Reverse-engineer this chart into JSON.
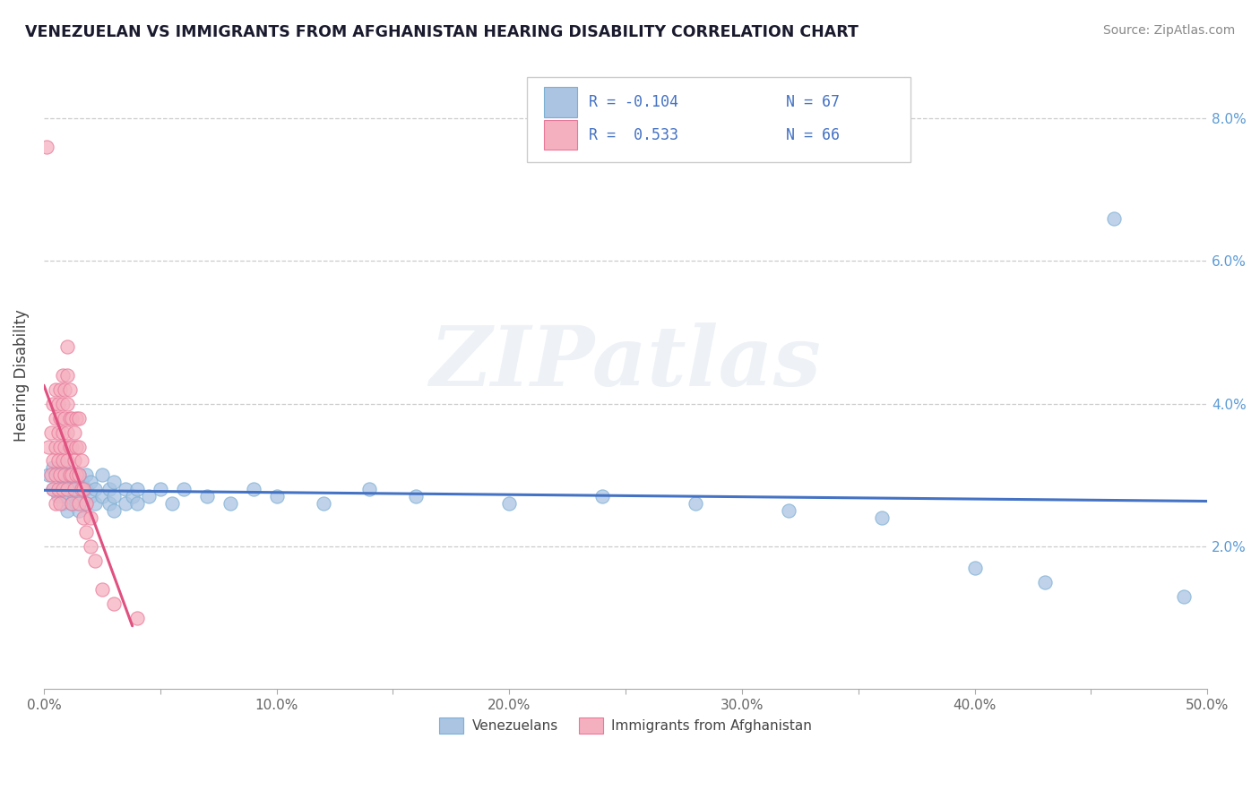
{
  "title": "VENEZUELAN VS IMMIGRANTS FROM AFGHANISTAN HEARING DISABILITY CORRELATION CHART",
  "source": "Source: ZipAtlas.com",
  "ylabel": "Hearing Disability",
  "xlim": [
    0.0,
    0.5
  ],
  "ylim": [
    0.0,
    0.088
  ],
  "xtick_labels": [
    "0.0%",
    "",
    "10.0%",
    "",
    "20.0%",
    "",
    "30.0%",
    "",
    "40.0%",
    "",
    "50.0%"
  ],
  "xtick_vals": [
    0.0,
    0.05,
    0.1,
    0.15,
    0.2,
    0.25,
    0.3,
    0.35,
    0.4,
    0.45,
    0.5
  ],
  "ytick_vals": [
    0.0,
    0.02,
    0.04,
    0.06,
    0.08
  ],
  "ytick_labels": [
    "",
    "2.0%",
    "4.0%",
    "6.0%",
    "8.0%"
  ],
  "venezuelan_color": "#aac4e2",
  "venezuelan_edge": "#7bafd4",
  "afghanistan_color": "#f5b0c0",
  "afghanistan_edge": "#e87898",
  "venezuelan_line_color": "#4472c4",
  "afghanistan_line_color": "#e05080",
  "watermark": "ZIPatlas",
  "venezuelan_points": [
    [
      0.002,
      0.03
    ],
    [
      0.004,
      0.028
    ],
    [
      0.004,
      0.031
    ],
    [
      0.006,
      0.027
    ],
    [
      0.006,
      0.03
    ],
    [
      0.006,
      0.031
    ],
    [
      0.007,
      0.028
    ],
    [
      0.007,
      0.03
    ],
    [
      0.008,
      0.026
    ],
    [
      0.008,
      0.028
    ],
    [
      0.008,
      0.03
    ],
    [
      0.008,
      0.031
    ],
    [
      0.009,
      0.027
    ],
    [
      0.009,
      0.029
    ],
    [
      0.01,
      0.025
    ],
    [
      0.01,
      0.027
    ],
    [
      0.01,
      0.03
    ],
    [
      0.011,
      0.028
    ],
    [
      0.011,
      0.029
    ],
    [
      0.012,
      0.026
    ],
    [
      0.012,
      0.028
    ],
    [
      0.012,
      0.03
    ],
    [
      0.013,
      0.027
    ],
    [
      0.013,
      0.029
    ],
    [
      0.014,
      0.026
    ],
    [
      0.014,
      0.028
    ],
    [
      0.015,
      0.025
    ],
    [
      0.015,
      0.027
    ],
    [
      0.015,
      0.03
    ],
    [
      0.016,
      0.029
    ],
    [
      0.017,
      0.028
    ],
    [
      0.018,
      0.026
    ],
    [
      0.018,
      0.028
    ],
    [
      0.018,
      0.03
    ],
    [
      0.02,
      0.027
    ],
    [
      0.02,
      0.029
    ],
    [
      0.022,
      0.026
    ],
    [
      0.022,
      0.028
    ],
    [
      0.025,
      0.027
    ],
    [
      0.025,
      0.03
    ],
    [
      0.028,
      0.026
    ],
    [
      0.028,
      0.028
    ],
    [
      0.03,
      0.025
    ],
    [
      0.03,
      0.027
    ],
    [
      0.03,
      0.029
    ],
    [
      0.035,
      0.026
    ],
    [
      0.035,
      0.028
    ],
    [
      0.038,
      0.027
    ],
    [
      0.04,
      0.026
    ],
    [
      0.04,
      0.028
    ],
    [
      0.045,
      0.027
    ],
    [
      0.05,
      0.028
    ],
    [
      0.055,
      0.026
    ],
    [
      0.06,
      0.028
    ],
    [
      0.07,
      0.027
    ],
    [
      0.08,
      0.026
    ],
    [
      0.09,
      0.028
    ],
    [
      0.1,
      0.027
    ],
    [
      0.12,
      0.026
    ],
    [
      0.14,
      0.028
    ],
    [
      0.16,
      0.027
    ],
    [
      0.2,
      0.026
    ],
    [
      0.24,
      0.027
    ],
    [
      0.28,
      0.026
    ],
    [
      0.32,
      0.025
    ],
    [
      0.36,
      0.024
    ],
    [
      0.4,
      0.017
    ],
    [
      0.43,
      0.015
    ],
    [
      0.46,
      0.066
    ],
    [
      0.49,
      0.013
    ]
  ],
  "afghanistan_points": [
    [
      0.001,
      0.076
    ],
    [
      0.002,
      0.034
    ],
    [
      0.003,
      0.03
    ],
    [
      0.003,
      0.036
    ],
    [
      0.004,
      0.028
    ],
    [
      0.004,
      0.032
    ],
    [
      0.004,
      0.04
    ],
    [
      0.005,
      0.026
    ],
    [
      0.005,
      0.03
    ],
    [
      0.005,
      0.034
    ],
    [
      0.005,
      0.038
    ],
    [
      0.005,
      0.042
    ],
    [
      0.006,
      0.028
    ],
    [
      0.006,
      0.032
    ],
    [
      0.006,
      0.036
    ],
    [
      0.006,
      0.04
    ],
    [
      0.007,
      0.026
    ],
    [
      0.007,
      0.03
    ],
    [
      0.007,
      0.034
    ],
    [
      0.007,
      0.038
    ],
    [
      0.007,
      0.042
    ],
    [
      0.008,
      0.028
    ],
    [
      0.008,
      0.032
    ],
    [
      0.008,
      0.036
    ],
    [
      0.008,
      0.04
    ],
    [
      0.008,
      0.044
    ],
    [
      0.009,
      0.03
    ],
    [
      0.009,
      0.034
    ],
    [
      0.009,
      0.038
    ],
    [
      0.009,
      0.042
    ],
    [
      0.01,
      0.028
    ],
    [
      0.01,
      0.032
    ],
    [
      0.01,
      0.036
    ],
    [
      0.01,
      0.04
    ],
    [
      0.01,
      0.044
    ],
    [
      0.01,
      0.048
    ],
    [
      0.011,
      0.03
    ],
    [
      0.011,
      0.034
    ],
    [
      0.011,
      0.038
    ],
    [
      0.011,
      0.042
    ],
    [
      0.012,
      0.026
    ],
    [
      0.012,
      0.03
    ],
    [
      0.012,
      0.034
    ],
    [
      0.012,
      0.038
    ],
    [
      0.013,
      0.028
    ],
    [
      0.013,
      0.032
    ],
    [
      0.013,
      0.036
    ],
    [
      0.014,
      0.03
    ],
    [
      0.014,
      0.034
    ],
    [
      0.014,
      0.038
    ],
    [
      0.015,
      0.026
    ],
    [
      0.015,
      0.03
    ],
    [
      0.015,
      0.034
    ],
    [
      0.015,
      0.038
    ],
    [
      0.016,
      0.028
    ],
    [
      0.016,
      0.032
    ],
    [
      0.017,
      0.024
    ],
    [
      0.017,
      0.028
    ],
    [
      0.018,
      0.022
    ],
    [
      0.018,
      0.026
    ],
    [
      0.02,
      0.02
    ],
    [
      0.02,
      0.024
    ],
    [
      0.022,
      0.018
    ],
    [
      0.025,
      0.014
    ],
    [
      0.03,
      0.012
    ],
    [
      0.04,
      0.01
    ]
  ]
}
